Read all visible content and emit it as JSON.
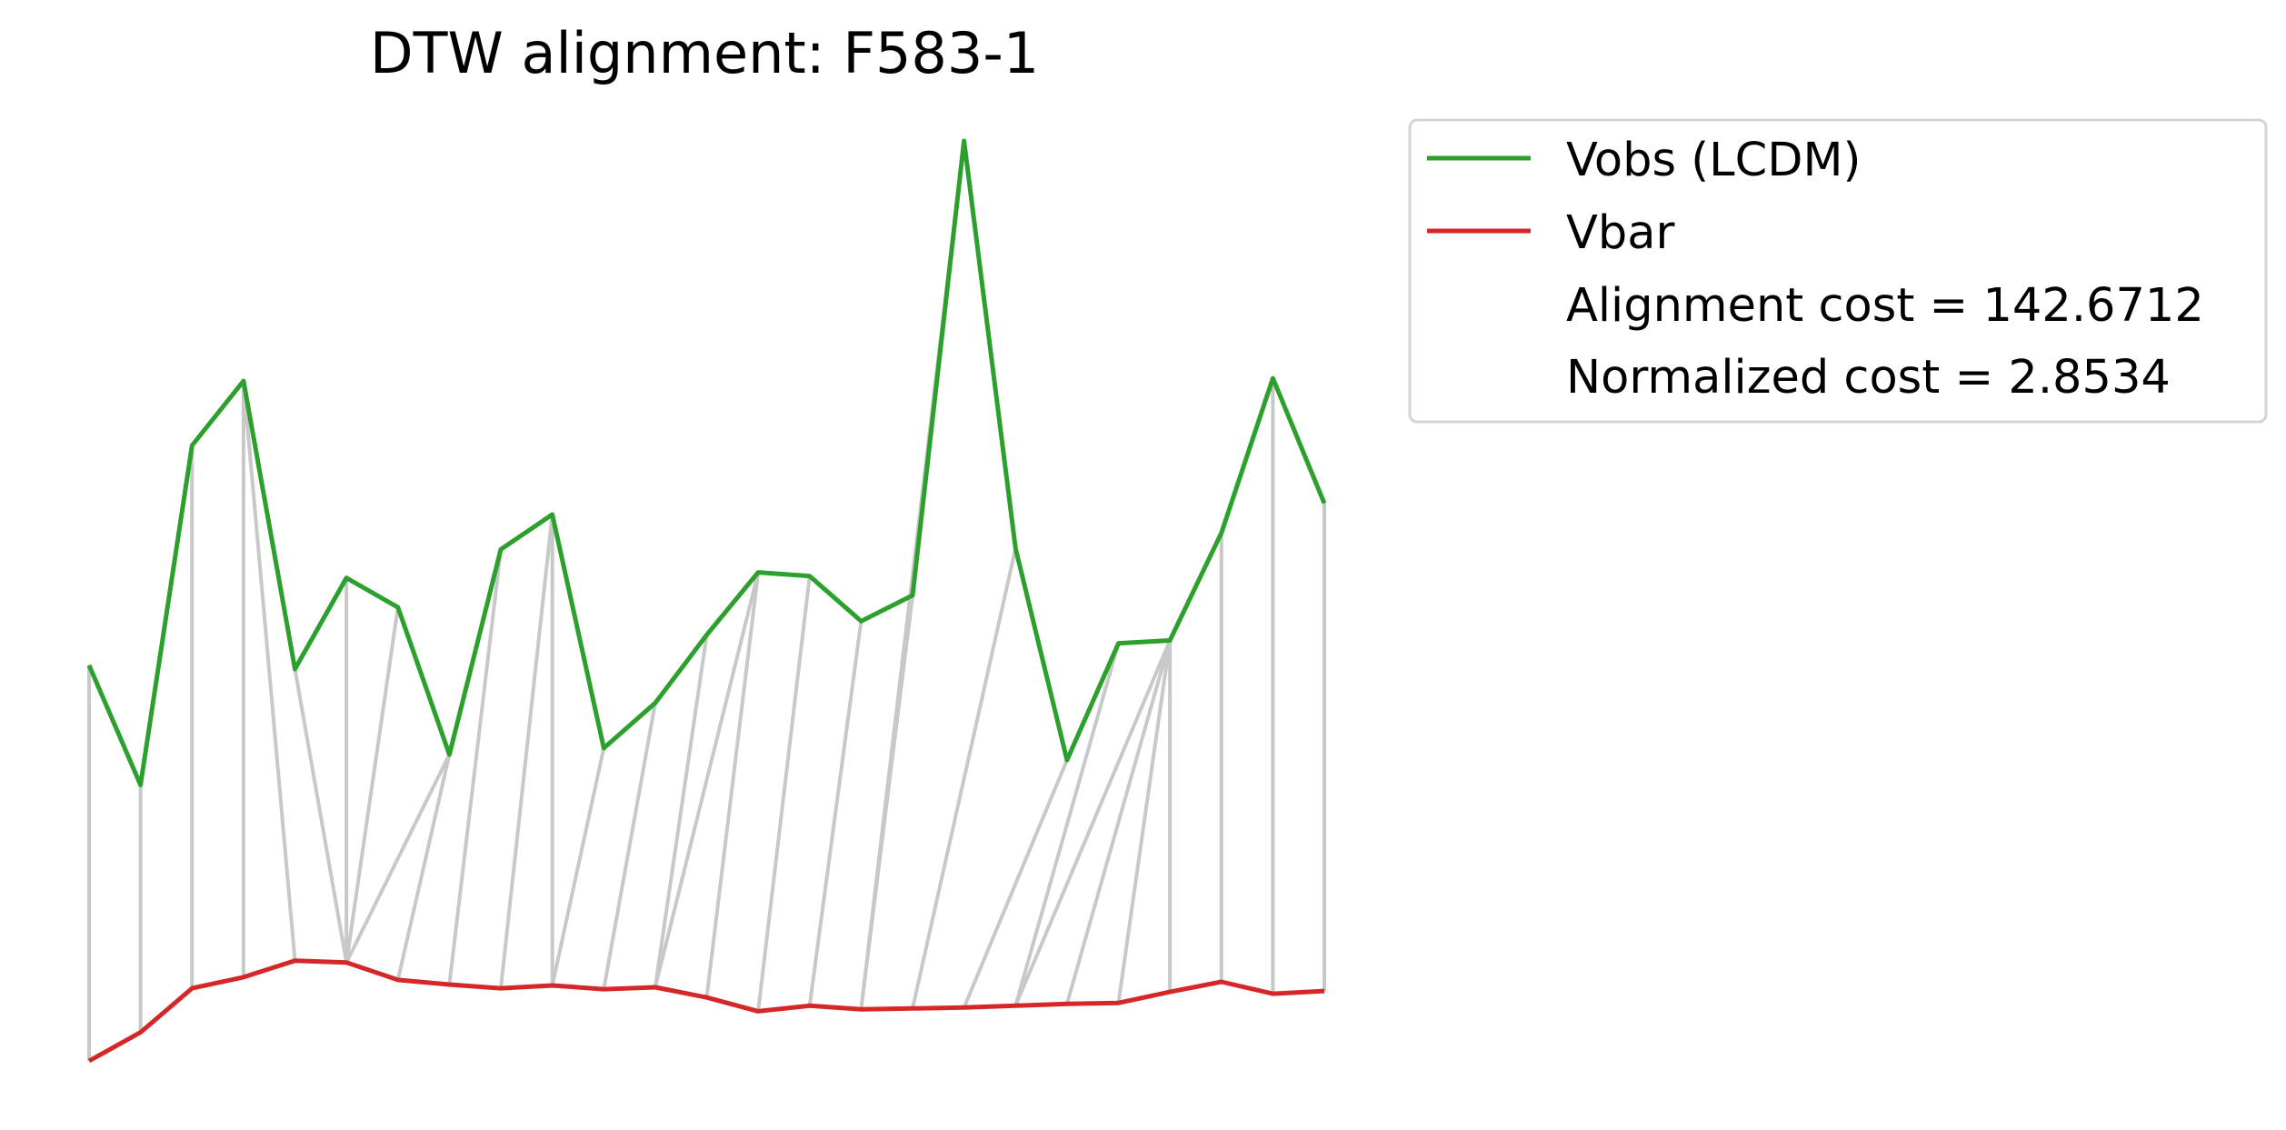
{
  "chart_data": {
    "type": "line",
    "title": "DTW alignment: F583-1",
    "xlabel": "",
    "ylabel": "",
    "axes_visible": false,
    "grid": false,
    "legend_position": "outside-top-right",
    "ylim": [
      0,
      100
    ],
    "series": [
      {
        "name": "Vobs (LCDM)",
        "color": "#2ca02c",
        "values": [
          43.0,
          30.0,
          66.9,
          73.9,
          42.6,
          52.5,
          49.3,
          33.3,
          55.6,
          59.4,
          34.0,
          38.9,
          46.3,
          53.1,
          52.7,
          47.8,
          50.6,
          100.0,
          55.7,
          32.7,
          45.4,
          45.7,
          57.4,
          74.2,
          60.6
        ]
      },
      {
        "name": "Vbar",
        "color": "#d62728",
        "values": [
          0.0,
          3.1,
          7.9,
          9.1,
          10.9,
          10.7,
          8.8,
          8.3,
          7.9,
          8.2,
          7.8,
          8.0,
          6.9,
          5.4,
          6.0,
          5.6,
          5.7,
          5.8,
          6.0,
          6.2,
          6.3,
          7.5,
          8.6,
          7.3,
          7.6
        ]
      }
    ],
    "alignment_path": [
      [
        0,
        0
      ],
      [
        1,
        1
      ],
      [
        2,
        2
      ],
      [
        3,
        3
      ],
      [
        3,
        4
      ],
      [
        4,
        5
      ],
      [
        5,
        5
      ],
      [
        6,
        5
      ],
      [
        7,
        5
      ],
      [
        7,
        6
      ],
      [
        8,
        7
      ],
      [
        9,
        8
      ],
      [
        9,
        9
      ],
      [
        10,
        9
      ],
      [
        11,
        10
      ],
      [
        12,
        11
      ],
      [
        13,
        11
      ],
      [
        13,
        12
      ],
      [
        14,
        13
      ],
      [
        15,
        14
      ],
      [
        16,
        15
      ],
      [
        17,
        15
      ],
      [
        18,
        16
      ],
      [
        19,
        17
      ],
      [
        20,
        18
      ],
      [
        21,
        18
      ],
      [
        21,
        19
      ],
      [
        21,
        20
      ],
      [
        21,
        21
      ],
      [
        22,
        22
      ],
      [
        23,
        23
      ],
      [
        24,
        24
      ]
    ],
    "path_color": "#c8c8c8",
    "legend": {
      "entries": [
        "Vobs (LCDM)",
        "Vbar"
      ],
      "extra_text": [
        "Alignment cost = 142.6712",
        "Normalized cost = 2.8534"
      ]
    }
  }
}
